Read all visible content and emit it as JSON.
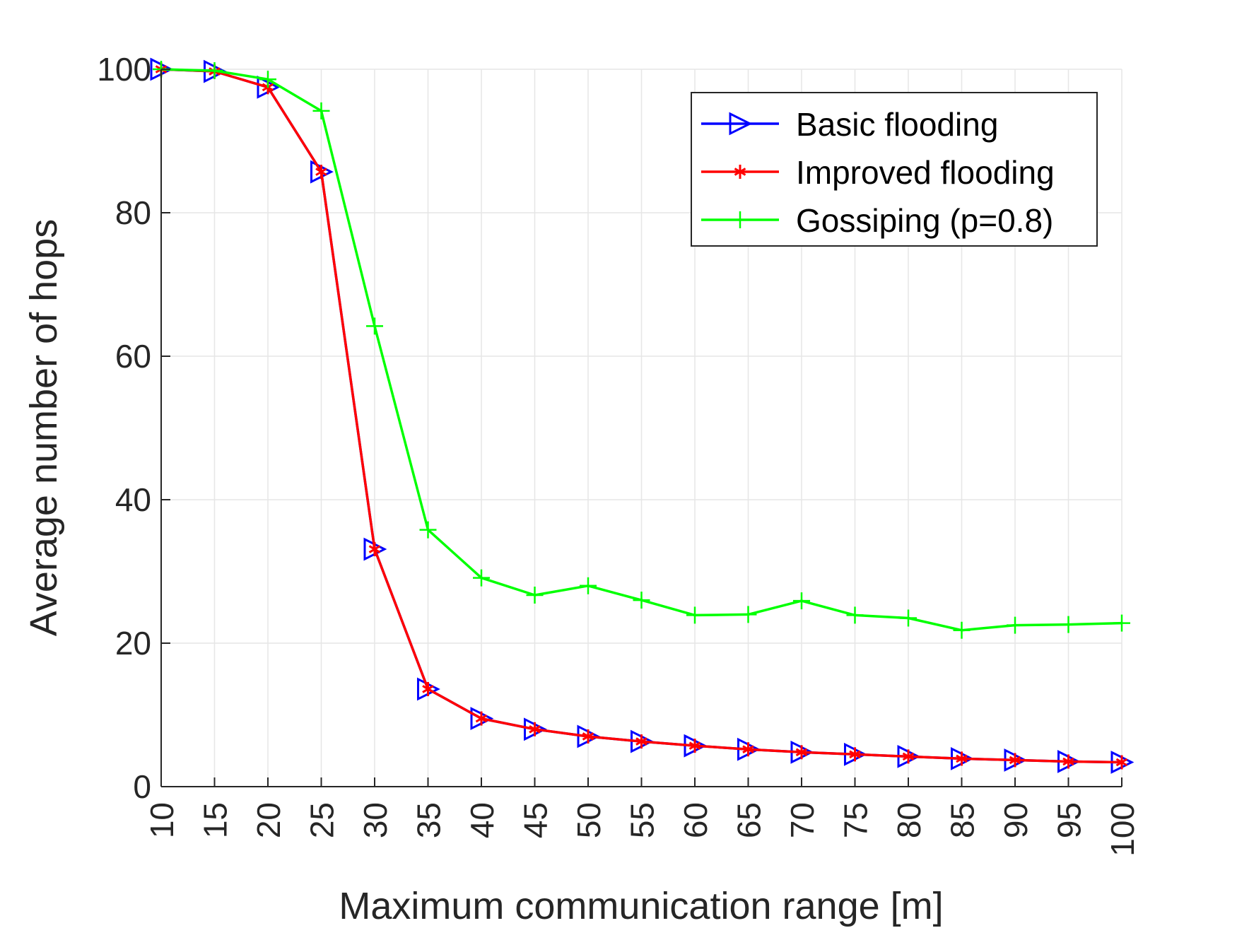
{
  "chart_data": {
    "type": "line",
    "xlabel": "Maximum communication range [m]",
    "ylabel": "Average number of hops",
    "x": [
      10,
      15,
      20,
      25,
      30,
      35,
      40,
      45,
      50,
      55,
      60,
      65,
      70,
      75,
      80,
      85,
      90,
      95,
      100
    ],
    "xlim": [
      10,
      100
    ],
    "ylim": [
      0,
      100
    ],
    "xticks": [
      "10",
      "15",
      "20",
      "25",
      "30",
      "35",
      "40",
      "45",
      "50",
      "55",
      "60",
      "65",
      "70",
      "75",
      "80",
      "85",
      "90",
      "95",
      "100"
    ],
    "yticks": [
      "0",
      "20",
      "40",
      "60",
      "80",
      "100"
    ],
    "grid": true,
    "legend_position": "top-right",
    "series": [
      {
        "name": "Basic flooding",
        "color": "#0000ff",
        "marker": "triangle-right",
        "values": [
          100,
          99.7,
          97.5,
          85.7,
          33.1,
          13.6,
          9.5,
          8.0,
          7.0,
          6.3,
          5.7,
          5.2,
          4.8,
          4.5,
          4.2,
          3.9,
          3.7,
          3.5,
          3.4
        ]
      },
      {
        "name": "Improved flooding",
        "color": "#ff0000",
        "marker": "asterisk",
        "values": [
          100,
          99.7,
          97.5,
          85.7,
          33.1,
          13.6,
          9.5,
          8.0,
          7.0,
          6.3,
          5.7,
          5.2,
          4.8,
          4.5,
          4.2,
          3.9,
          3.7,
          3.5,
          3.4
        ]
      },
      {
        "name": "Gossiping (p=0.8)",
        "color": "#00ff00",
        "marker": "plus",
        "values": [
          100,
          99.8,
          98.6,
          94.2,
          64.2,
          35.8,
          29.1,
          26.7,
          28.0,
          26.0,
          23.9,
          24.0,
          25.9,
          23.9,
          23.5,
          21.8,
          22.5,
          22.6,
          22.8
        ]
      }
    ]
  }
}
